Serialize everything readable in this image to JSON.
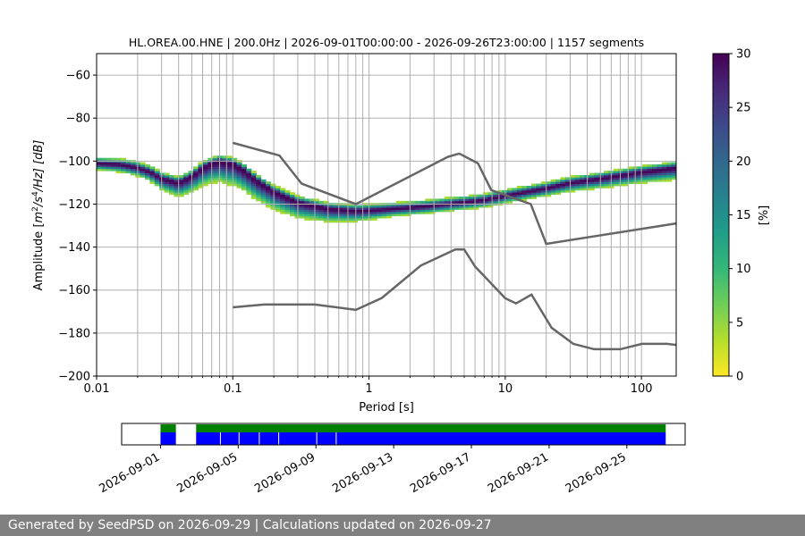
{
  "footer": {
    "text": "Generated by SeedPSD on 2026-09-29 | Calculations updated on 2026-09-27"
  },
  "colors": {
    "grid": "#b0b0b0",
    "model_line": "#666666",
    "availability_top": "#008000",
    "availability_bottom": "#0000ff",
    "colormap": [
      "#fde725",
      "#b5de2b",
      "#6ece58",
      "#35b779",
      "#1f9e89",
      "#26828e",
      "#31688e",
      "#3e4989",
      "#482878",
      "#440154"
    ]
  },
  "chart_data": [
    {
      "type": "heatmap",
      "title": "HL.OREA.00.HNE | 200.0Hz | 2026-09-01T00:00:00 - 2026-09-26T23:00:00 | 1157 segments",
      "xlabel": "Period [s]",
      "ylabel": "Amplitude [m²/s⁴/Hz] [dB]",
      "ylabel_parts": {
        "pre": "Amplitude [",
        "m": "m",
        "e2": "2",
        "s": "/s",
        "e4": "4",
        "post": "/Hz] [dB]"
      },
      "xscale": "log",
      "xlim": [
        0.01,
        180
      ],
      "ylim": [
        -200,
        -50
      ],
      "xticks": [
        0.01,
        0.1,
        1,
        10,
        100
      ],
      "xtick_labels": [
        "0.01",
        "0.1",
        "1",
        "10",
        "100"
      ],
      "yticks": [
        -200,
        -180,
        -160,
        -140,
        -120,
        -100,
        -80,
        -60
      ],
      "ytick_labels": [
        "−200",
        "−180",
        "−160",
        "−140",
        "−120",
        "−100",
        "−80",
        "−60"
      ],
      "grid": true,
      "colorbar": {
        "label": "[%]",
        "range": [
          0,
          30
        ],
        "ticks": [
          0,
          5,
          10,
          15,
          20,
          25,
          30
        ],
        "tick_labels": [
          "0",
          "5",
          "10",
          "15",
          "20",
          "25",
          "30"
        ]
      },
      "psd_mode": {
        "period": [
          0.01,
          0.015,
          0.02,
          0.025,
          0.03,
          0.04,
          0.05,
          0.06,
          0.07,
          0.08,
          0.1,
          0.12,
          0.15,
          0.2,
          0.3,
          0.5,
          0.8,
          1.2,
          2,
          3,
          5,
          7,
          10,
          15,
          20,
          30,
          50,
          100,
          180
        ],
        "db": [
          -101,
          -101.5,
          -103,
          -105,
          -108,
          -110,
          -107,
          -103,
          -101,
          -100,
          -101,
          -104,
          -109,
          -114,
          -119,
          -122,
          -123,
          -122.5,
          -121.5,
          -120.5,
          -119,
          -118,
          -116,
          -114,
          -112.5,
          -110,
          -108,
          -105,
          -103
        ]
      },
      "nlnm": {
        "period": [
          0.1,
          0.17,
          0.4,
          0.8,
          1.24,
          2.4,
          4.3,
          5,
          6,
          10,
          12,
          15.6,
          21.9,
          31.6,
          45,
          70,
          101,
          154,
          180
        ],
        "db": [
          -168,
          -166.7,
          -166.7,
          -169.2,
          -163.7,
          -148.6,
          -141.1,
          -141.1,
          -149,
          -163.8,
          -166.2,
          -162.1,
          -177.5,
          -185,
          -187.5,
          -187.5,
          -185,
          -185,
          -185.5
        ]
      },
      "nhnm": {
        "period": [
          0.1,
          0.22,
          0.32,
          0.8,
          3.8,
          4.6,
          6.3,
          7.9,
          15.4,
          20,
          180
        ],
        "db": [
          -91.5,
          -97.4,
          -110.5,
          -120,
          -98,
          -96.5,
          -101,
          -113.5,
          -120,
          -138.5,
          -129
        ]
      }
    },
    {
      "type": "timeline",
      "xticks": [
        "2026-09-01",
        "2026-09-05",
        "2026-09-09",
        "2026-09-13",
        "2026-09-17",
        "2026-09-21",
        "2026-09-25"
      ],
      "xlim": [
        "2026-08-30",
        "2026-09-28"
      ],
      "available": [
        {
          "start": "2026-09-01",
          "end": "2026-09-01T19:00"
        },
        {
          "start": "2026-09-02T20:00",
          "end": "2026-09-27"
        }
      ],
      "gaps": [
        "2026-09-02T01:00",
        "2026-09-04T02:00",
        "2026-09-05T01:00",
        "2026-09-06T02:00",
        "2026-09-07T02:00",
        "2026-09-09T01:00",
        "2026-09-10T01:00"
      ]
    }
  ]
}
